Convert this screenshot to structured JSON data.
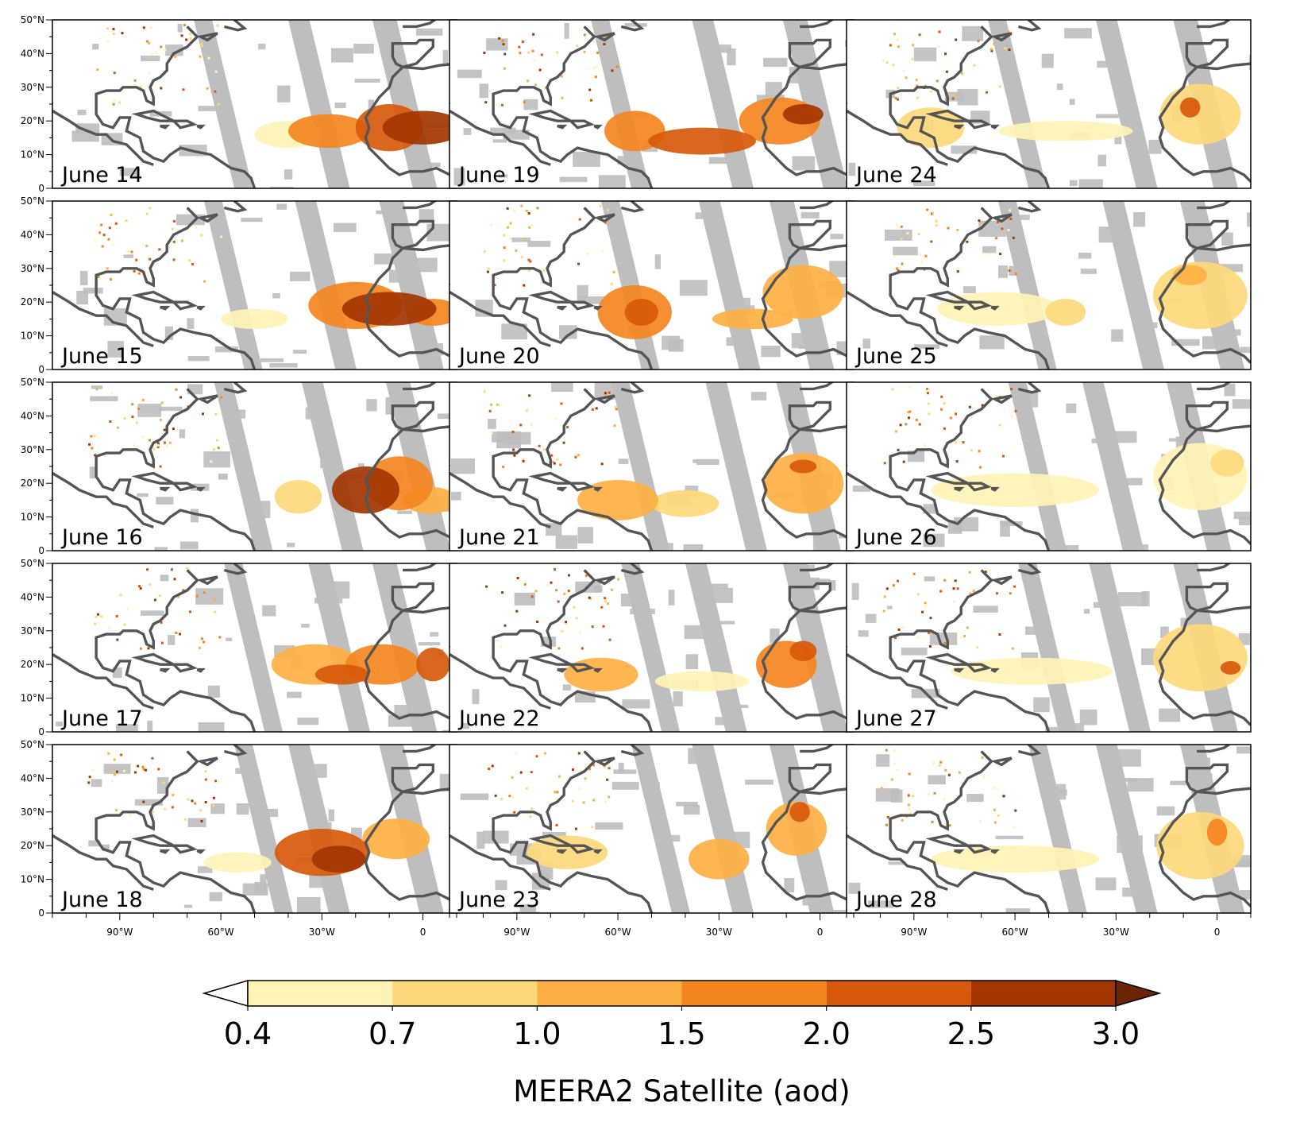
{
  "figure": {
    "panels": [
      {
        "label": "June 14",
        "plume": [
          {
            "lon": -28,
            "lat": 17,
            "rx": 12,
            "ry": 5,
            "level": 4
          },
          {
            "lon": -10,
            "lat": 18,
            "rx": 10,
            "ry": 7,
            "level": 5
          },
          {
            "lon": 0,
            "lat": 18,
            "rx": 12,
            "ry": 5,
            "level": 6
          },
          {
            "lon": -40,
            "lat": 16,
            "rx": 10,
            "ry": 4,
            "level": 1
          }
        ]
      },
      {
        "label": "June 15",
        "plume": [
          {
            "lon": -20,
            "lat": 19,
            "rx": 14,
            "ry": 7,
            "level": 4
          },
          {
            "lon": -10,
            "lat": 18,
            "rx": 14,
            "ry": 5,
            "level": 6
          },
          {
            "lon": 3,
            "lat": 17,
            "rx": 8,
            "ry": 4,
            "level": 4
          },
          {
            "lon": -50,
            "lat": 15,
            "rx": 10,
            "ry": 3,
            "level": 1
          }
        ]
      },
      {
        "label": "June 16",
        "plume": [
          {
            "lon": -17,
            "lat": 18,
            "rx": 10,
            "ry": 7,
            "level": 6
          },
          {
            "lon": -7,
            "lat": 20,
            "rx": 10,
            "ry": 8,
            "level": 4
          },
          {
            "lon": -37,
            "lat": 16,
            "rx": 7,
            "ry": 5,
            "level": 2
          },
          {
            "lon": 2,
            "lat": 15,
            "rx": 8,
            "ry": 4,
            "level": 3
          }
        ]
      },
      {
        "label": "June 17",
        "plume": [
          {
            "lon": -32,
            "lat": 20,
            "rx": 13,
            "ry": 6,
            "level": 3
          },
          {
            "lon": -24,
            "lat": 17,
            "rx": 8,
            "ry": 3,
            "level": 5
          },
          {
            "lon": -12,
            "lat": 20,
            "rx": 11,
            "ry": 6,
            "level": 4
          },
          {
            "lon": 3,
            "lat": 20,
            "rx": 5,
            "ry": 5,
            "level": 5
          }
        ]
      },
      {
        "label": "June 18",
        "plume": [
          {
            "lon": -30,
            "lat": 18,
            "rx": 14,
            "ry": 7,
            "level": 5
          },
          {
            "lon": -25,
            "lat": 16,
            "rx": 8,
            "ry": 4,
            "level": 6
          },
          {
            "lon": -8,
            "lat": 22,
            "rx": 10,
            "ry": 6,
            "level": 3
          },
          {
            "lon": -55,
            "lat": 15,
            "rx": 10,
            "ry": 3,
            "level": 1
          }
        ]
      },
      {
        "label": "June 19",
        "plume": [
          {
            "lon": -55,
            "lat": 17,
            "rx": 9,
            "ry": 6,
            "level": 4
          },
          {
            "lon": -35,
            "lat": 14,
            "rx": 16,
            "ry": 4,
            "level": 5
          },
          {
            "lon": -12,
            "lat": 20,
            "rx": 12,
            "ry": 7,
            "level": 4
          },
          {
            "lon": -5,
            "lat": 22,
            "rx": 6,
            "ry": 3,
            "level": 6
          }
        ]
      },
      {
        "label": "June 20",
        "plume": [
          {
            "lon": -55,
            "lat": 17,
            "rx": 11,
            "ry": 8,
            "level": 4
          },
          {
            "lon": -53,
            "lat": 17,
            "rx": 5,
            "ry": 4,
            "level": 5
          },
          {
            "lon": -20,
            "lat": 15,
            "rx": 12,
            "ry": 3,
            "level": 3
          },
          {
            "lon": -5,
            "lat": 23,
            "rx": 12,
            "ry": 8,
            "level": 3
          }
        ]
      },
      {
        "label": "June 21",
        "plume": [
          {
            "lon": -60,
            "lat": 15,
            "rx": 12,
            "ry": 6,
            "level": 3
          },
          {
            "lon": -40,
            "lat": 14,
            "rx": 10,
            "ry": 4,
            "level": 2
          },
          {
            "lon": -5,
            "lat": 20,
            "rx": 12,
            "ry": 9,
            "level": 3
          },
          {
            "lon": -5,
            "lat": 25,
            "rx": 4,
            "ry": 2,
            "level": 5
          }
        ]
      },
      {
        "label": "June 22",
        "plume": [
          {
            "lon": -65,
            "lat": 17,
            "rx": 11,
            "ry": 5,
            "level": 3
          },
          {
            "lon": -35,
            "lat": 15,
            "rx": 14,
            "ry": 3,
            "level": 1
          },
          {
            "lon": -10,
            "lat": 20,
            "rx": 9,
            "ry": 7,
            "level": 4
          },
          {
            "lon": -5,
            "lat": 24,
            "rx": 4,
            "ry": 3,
            "level": 5
          }
        ]
      },
      {
        "label": "June 23",
        "plume": [
          {
            "lon": -75,
            "lat": 18,
            "rx": 12,
            "ry": 5,
            "level": 2
          },
          {
            "lon": -30,
            "lat": 16,
            "rx": 9,
            "ry": 6,
            "level": 3
          },
          {
            "lon": -7,
            "lat": 25,
            "rx": 9,
            "ry": 8,
            "level": 3
          },
          {
            "lon": -6,
            "lat": 30,
            "rx": 3,
            "ry": 3,
            "level": 5
          }
        ]
      },
      {
        "label": "June 24",
        "plume": [
          {
            "lon": -85,
            "lat": 18,
            "rx": 10,
            "ry": 6,
            "level": 2
          },
          {
            "lon": -45,
            "lat": 17,
            "rx": 20,
            "ry": 3,
            "level": 1
          },
          {
            "lon": -5,
            "lat": 22,
            "rx": 12,
            "ry": 9,
            "level": 2
          },
          {
            "lon": -8,
            "lat": 24,
            "rx": 3,
            "ry": 3,
            "level": 5
          }
        ]
      },
      {
        "label": "June 25",
        "plume": [
          {
            "lon": -65,
            "lat": 18,
            "rx": 18,
            "ry": 5,
            "level": 1
          },
          {
            "lon": -45,
            "lat": 17,
            "rx": 6,
            "ry": 4,
            "level": 2
          },
          {
            "lon": -5,
            "lat": 22,
            "rx": 14,
            "ry": 10,
            "level": 2
          },
          {
            "lon": -8,
            "lat": 28,
            "rx": 5,
            "ry": 3,
            "level": 3
          }
        ]
      },
      {
        "label": "June 26",
        "plume": [
          {
            "lon": -60,
            "lat": 18,
            "rx": 25,
            "ry": 5,
            "level": 1
          },
          {
            "lon": -5,
            "lat": 22,
            "rx": 14,
            "ry": 10,
            "level": 1
          },
          {
            "lon": 3,
            "lat": 26,
            "rx": 5,
            "ry": 4,
            "level": 2
          }
        ]
      },
      {
        "label": "June 27",
        "plume": [
          {
            "lon": -55,
            "lat": 18,
            "rx": 24,
            "ry": 4,
            "level": 1
          },
          {
            "lon": -5,
            "lat": 22,
            "rx": 14,
            "ry": 10,
            "level": 2
          },
          {
            "lon": 4,
            "lat": 19,
            "rx": 3,
            "ry": 2,
            "level": 5
          }
        ]
      },
      {
        "label": "June 28",
        "plume": [
          {
            "lon": -60,
            "lat": 16,
            "rx": 25,
            "ry": 4,
            "level": 1
          },
          {
            "lon": -5,
            "lat": 20,
            "rx": 13,
            "ry": 10,
            "level": 2
          },
          {
            "lon": 0,
            "lat": 24,
            "rx": 3,
            "ry": 4,
            "level": 4
          }
        ]
      }
    ],
    "lat_ticks": [
      {
        "value": 0,
        "label": "0"
      },
      {
        "value": 10,
        "label": "10°N"
      },
      {
        "value": 20,
        "label": "20°N"
      },
      {
        "value": 30,
        "label": "30°N"
      },
      {
        "value": 40,
        "label": "40°N"
      },
      {
        "value": 50,
        "label": "50°N"
      }
    ],
    "lon_ticks": [
      {
        "value": -90,
        "label": "90°W"
      },
      {
        "value": -60,
        "label": "60°W"
      },
      {
        "value": -30,
        "label": "30°W"
      },
      {
        "value": 0,
        "label": "0"
      }
    ],
    "lon_range": [
      -110,
      10
    ],
    "lat_range": [
      0,
      50
    ],
    "missing_color": "#bebebe",
    "coast_color": "#555555",
    "colorbar": {
      "label": "MEERA2 Satellite (aod)",
      "bounds": [
        "0.4",
        "0.7",
        "1.0",
        "1.5",
        "2.0",
        "2.5",
        "3.0"
      ],
      "under_color": "#ffffff",
      "colors": [
        "#fff3b5",
        "#fed97c",
        "#fdb043",
        "#f4861f",
        "#d8590b",
        "#a33602"
      ],
      "over_color": "#6b2405",
      "extend": "both"
    }
  }
}
